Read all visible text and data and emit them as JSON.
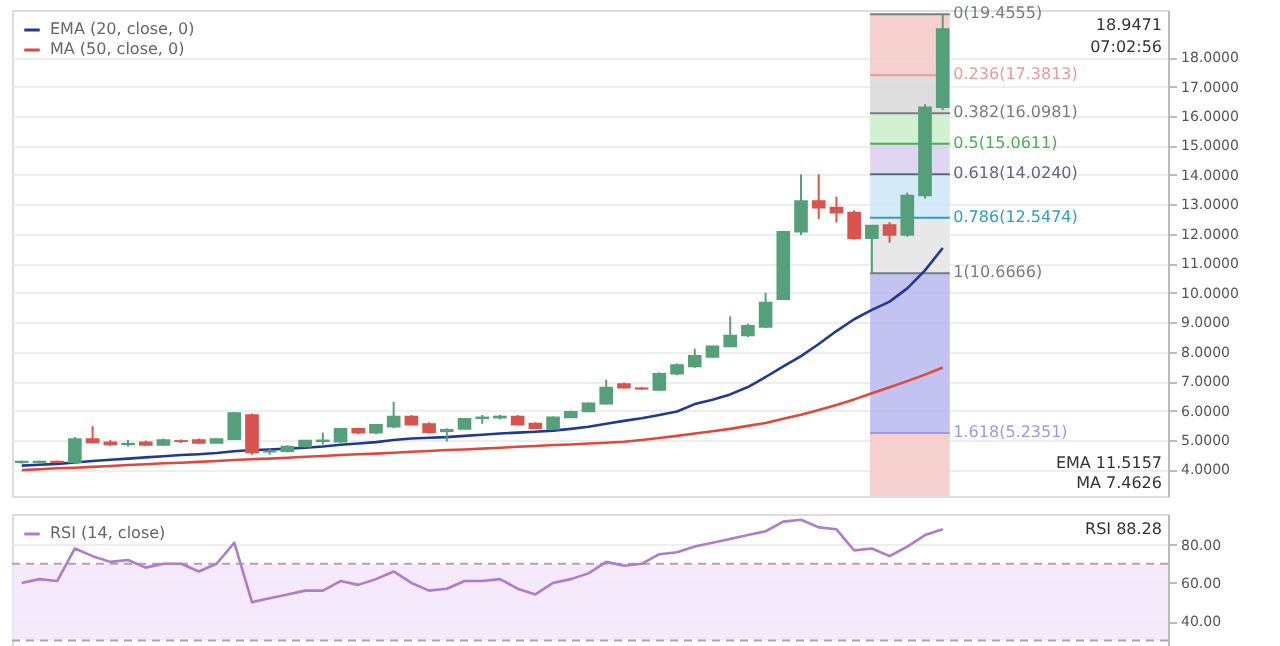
{
  "chart_data": [
    {
      "type": "candlestick",
      "categories": [
        null,
        null,
        null,
        null,
        null,
        null,
        null,
        null,
        null,
        null,
        null,
        null,
        null,
        null,
        null,
        null,
        null,
        null,
        null,
        null,
        null,
        null,
        null,
        null,
        null,
        null,
        null,
        null,
        null,
        null,
        null,
        null,
        null,
        null,
        null,
        null,
        null,
        null,
        null,
        null,
        null,
        null,
        null,
        null,
        null,
        null,
        null,
        null,
        null,
        null,
        null,
        null,
        null
      ],
      "ohlc": [
        [
          4.25,
          4.3,
          4.2,
          4.27
        ],
        [
          4.25,
          4.3,
          4.2,
          4.27
        ],
        [
          4.27,
          4.3,
          4.22,
          4.25
        ],
        [
          4.25,
          5.1,
          4.2,
          5.03
        ],
        [
          5.03,
          5.47,
          4.9,
          4.92
        ],
        [
          4.92,
          5.0,
          4.8,
          4.85
        ],
        [
          4.85,
          5.0,
          4.78,
          4.88
        ],
        [
          4.92,
          4.98,
          4.8,
          4.83
        ],
        [
          4.83,
          5.05,
          4.8,
          5.0
        ],
        [
          4.97,
          5.02,
          4.9,
          4.96
        ],
        [
          5.0,
          5.05,
          4.88,
          4.9
        ],
        [
          4.9,
          5.06,
          4.88,
          5.03
        ],
        [
          5.03,
          5.95,
          5.0,
          5.92
        ],
        [
          5.85,
          5.9,
          4.5,
          4.58
        ],
        [
          4.6,
          4.7,
          4.5,
          4.62
        ],
        [
          4.62,
          4.82,
          4.58,
          4.78
        ],
        [
          4.78,
          5.0,
          4.75,
          4.98
        ],
        [
          4.96,
          5.25,
          4.85,
          4.99
        ],
        [
          4.94,
          5.4,
          4.9,
          5.38
        ],
        [
          5.38,
          5.42,
          5.2,
          5.25
        ],
        [
          5.25,
          5.55,
          5.2,
          5.52
        ],
        [
          5.45,
          6.3,
          5.4,
          5.8
        ],
        [
          5.8,
          5.85,
          5.5,
          5.52
        ],
        [
          5.54,
          5.6,
          5.22,
          5.27
        ],
        [
          5.3,
          5.4,
          4.95,
          5.35
        ],
        [
          5.38,
          5.75,
          5.35,
          5.72
        ],
        [
          5.74,
          5.85,
          5.55,
          5.77
        ],
        [
          5.76,
          5.85,
          5.7,
          5.8
        ],
        [
          5.8,
          5.85,
          5.5,
          5.52
        ],
        [
          5.56,
          5.6,
          5.38,
          5.4
        ],
        [
          5.38,
          5.8,
          5.35,
          5.77
        ],
        [
          5.77,
          6.0,
          5.75,
          5.96
        ],
        [
          5.97,
          6.28,
          5.95,
          6.25
        ],
        [
          6.23,
          7.05,
          6.2,
          6.78
        ],
        [
          6.9,
          6.95,
          6.75,
          6.78
        ],
        [
          6.76,
          6.8,
          6.7,
          6.74
        ],
        [
          6.7,
          7.3,
          6.68,
          7.25
        ],
        [
          7.25,
          7.6,
          7.2,
          7.55
        ],
        [
          7.5,
          8.1,
          7.45,
          7.86
        ],
        [
          7.82,
          8.2,
          7.8,
          8.18
        ],
        [
          8.18,
          9.2,
          8.15,
          8.55
        ],
        [
          8.55,
          8.95,
          8.5,
          8.88
        ],
        [
          8.84,
          10.0,
          8.8,
          9.67
        ],
        [
          9.78,
          12.1,
          9.75,
          12.07
        ],
        [
          12.07,
          14.02,
          11.96,
          13.11
        ],
        [
          13.11,
          14.02,
          12.5,
          12.89
        ],
        [
          12.89,
          13.26,
          12.39,
          12.72
        ],
        [
          12.72,
          12.8,
          11.8,
          11.85
        ],
        [
          11.85,
          12.3,
          10.67,
          12.28
        ],
        [
          12.3,
          12.4,
          11.7,
          11.96
        ],
        [
          11.96,
          13.4,
          11.9,
          13.3
        ],
        [
          13.3,
          16.4,
          13.2,
          16.3
        ],
        [
          16.3,
          19.46,
          16.2,
          18.95
        ]
      ],
      "series": [
        {
          "name": "EMA (20, close, 0)",
          "type": "line",
          "color": "#1f3a93",
          "values": [
            4.13,
            4.16,
            4.19,
            4.24,
            4.29,
            4.33,
            4.37,
            4.41,
            4.45,
            4.49,
            4.52,
            4.56,
            4.62,
            4.66,
            4.68,
            4.71,
            4.74,
            4.78,
            4.84,
            4.88,
            4.93,
            5.0,
            5.05,
            5.08,
            5.1,
            5.14,
            5.18,
            5.22,
            5.25,
            5.28,
            5.32,
            5.38,
            5.45,
            5.55,
            5.65,
            5.74,
            5.85,
            5.97,
            6.22,
            6.37,
            6.55,
            6.8,
            7.14,
            7.5,
            7.85,
            8.26,
            8.7,
            9.1,
            9.42,
            9.7,
            10.15,
            10.76,
            11.52
          ]
        },
        {
          "name": "MA (50, close, 0)",
          "type": "line",
          "color": "#e0483d",
          "values": [
            3.98,
            4.01,
            4.04,
            4.06,
            4.09,
            4.12,
            4.15,
            4.18,
            4.21,
            4.23,
            4.26,
            4.29,
            4.32,
            4.35,
            4.37,
            4.4,
            4.43,
            4.46,
            4.49,
            4.52,
            4.54,
            4.57,
            4.6,
            4.63,
            4.66,
            4.68,
            4.71,
            4.74,
            4.77,
            4.8,
            4.83,
            4.85,
            4.88,
            4.91,
            4.94,
            5.0,
            5.07,
            5.14,
            5.22,
            5.3,
            5.38,
            5.48,
            5.58,
            5.72,
            5.86,
            6.02,
            6.19,
            6.38,
            6.59,
            6.79,
            7.0,
            7.22,
            7.46
          ]
        }
      ],
      "ylim": [
        3.1,
        19.6
      ],
      "yticks": [
        {
          "value": 4,
          "label": "4.0000"
        },
        {
          "value": 5,
          "label": "5.0000"
        },
        {
          "value": 6,
          "label": "6.0000"
        },
        {
          "value": 7,
          "label": "7.0000"
        },
        {
          "value": 8,
          "label": "8.0000"
        },
        {
          "value": 9,
          "label": "9.0000"
        },
        {
          "value": 10,
          "label": "10.0000"
        },
        {
          "value": 11,
          "label": "11.0000"
        },
        {
          "value": 12,
          "label": "12.0000"
        },
        {
          "value": 13,
          "label": "13.0000"
        },
        {
          "value": 14,
          "label": "14.0000"
        },
        {
          "value": 15,
          "label": "15.0000"
        },
        {
          "value": 16,
          "label": "16.0000"
        },
        {
          "value": 17,
          "label": "17.0000"
        },
        {
          "value": 18,
          "label": "18.0000"
        }
      ],
      "bands": [
        {
          "axis": "y",
          "from": 17.3813,
          "to": 19.4555,
          "color": "#f4c7c7"
        },
        {
          "axis": "y",
          "from": 16.0981,
          "to": 17.3813,
          "color": "#d8d8d8"
        },
        {
          "axis": "y",
          "from": 15.0611,
          "to": 16.0981,
          "color": "#c9efc9"
        },
        {
          "axis": "y",
          "from": 14.024,
          "to": 15.0611,
          "color": "#d9d0ee"
        },
        {
          "axis": "y",
          "from": 12.5474,
          "to": 14.024,
          "color": "#cde6f5"
        },
        {
          "axis": "y",
          "from": 10.6666,
          "to": 12.5474,
          "color": "#e4e4e4"
        },
        {
          "axis": "y",
          "from": 5.2351,
          "to": 10.6666,
          "color": "#b9b9f0"
        },
        {
          "axis": "y",
          "from": 3.1,
          "to": 5.2351,
          "color": "#f4c7c7"
        }
      ],
      "ref_lines": [
        {
          "axis": "y",
          "value": 19.4555,
          "label": "0(19.4555)",
          "color": "#787b86"
        },
        {
          "axis": "y",
          "value": 17.3813,
          "label": "0.236(17.3813)",
          "color": "#e89a9a"
        },
        {
          "axis": "y",
          "value": 16.0981,
          "label": "0.382(16.0981)",
          "color": "#787b86"
        },
        {
          "axis": "y",
          "value": 15.0611,
          "label": "0.5(15.0611)",
          "color": "#4caf50"
        },
        {
          "axis": "y",
          "value": 14.024,
          "label": "0.618(14.0240)",
          "color": "#5d6680"
        },
        {
          "axis": "y",
          "value": 12.5474,
          "label": "0.786(12.5474)",
          "color": "#2a9fc7"
        },
        {
          "axis": "y",
          "value": 10.6666,
          "label": "1(10.6666)",
          "color": "#787b86"
        },
        {
          "axis": "y",
          "value": 5.2351,
          "label": "1.618(5.2351)",
          "color": "#9a9ae6"
        }
      ],
      "annotations": [
        "18.9471",
        "07:02:56",
        "EMA 11.5157",
        "MA 7.4626"
      ],
      "grid": "y",
      "legend": "top left",
      "tick_labels": "y"
    },
    {
      "type": "line",
      "categories": [
        null,
        null,
        null,
        null,
        null,
        null,
        null,
        null,
        null,
        null,
        null,
        null,
        null,
        null,
        null,
        null,
        null,
        null,
        null,
        null,
        null,
        null,
        null,
        null,
        null,
        null,
        null,
        null,
        null,
        null,
        null,
        null,
        null,
        null,
        null,
        null,
        null,
        null,
        null,
        null,
        null,
        null,
        null,
        null,
        null,
        null,
        null,
        null,
        null,
        null,
        null,
        null,
        null
      ],
      "series": [
        {
          "name": "RSI (14, close)",
          "color": "#b07cc6",
          "values": [
            60,
            62,
            61,
            78,
            74,
            71,
            72,
            68,
            70,
            70,
            66,
            70,
            81,
            50,
            52,
            54,
            56,
            56,
            61,
            59,
            62,
            66,
            60,
            56,
            57,
            61,
            61,
            62,
            57,
            54,
            60,
            62,
            65,
            71,
            69,
            70,
            75,
            76,
            79,
            81,
            83,
            85,
            87,
            92,
            93,
            89,
            88,
            77,
            78,
            74,
            79,
            85,
            88
          ]
        }
      ],
      "ylim": [
        25,
        96
      ],
      "yticks": [
        {
          "value": 40,
          "label": "40.00"
        },
        {
          "value": 60,
          "label": "60.00"
        },
        {
          "value": 80,
          "label": "80.00"
        }
      ],
      "bands": [
        {
          "axis": "y",
          "from": 30,
          "to": 70,
          "color": "#f3e5fc"
        }
      ],
      "ref_lines": [
        {
          "axis": "y",
          "value": 70,
          "color": "#b0a0b8",
          "line_style": "dashed"
        },
        {
          "axis": "y",
          "value": 30,
          "color": "#b0a0b8",
          "line_style": "dashed"
        }
      ],
      "annotations": [
        "RSI 88.28"
      ],
      "grid": "y",
      "legend": "top left",
      "tick_labels": "y"
    }
  ]
}
